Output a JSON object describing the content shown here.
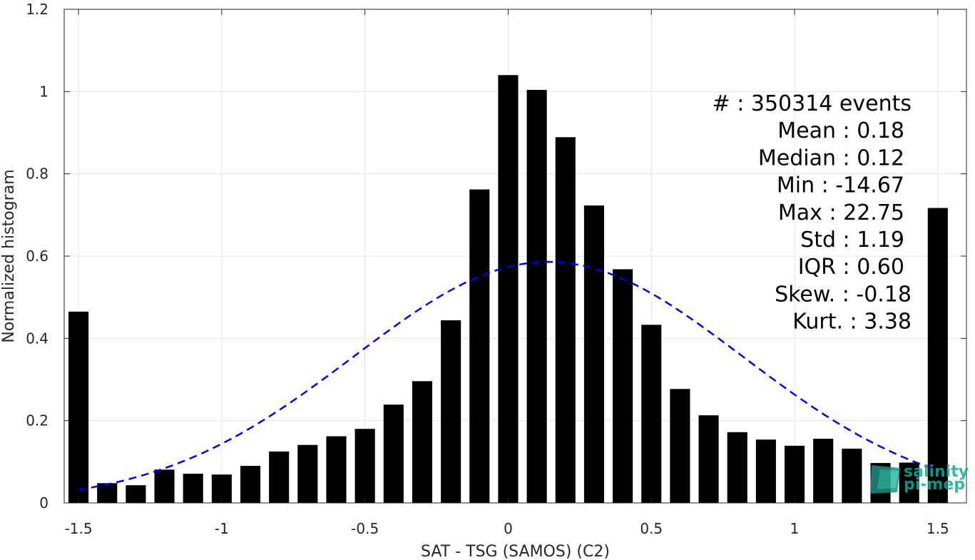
{
  "chart_data": {
    "type": "bar",
    "xlabel": "SAT - TSG (SAMOS) (C2)",
    "ylabel": "Normalized histogram",
    "xlim": [
      -1.55,
      1.6
    ],
    "ylim": [
      0,
      1.2
    ],
    "grid": true,
    "bar_width": 0.07,
    "x_ticks": [
      "-1.5",
      "-1",
      "-0.5",
      "0",
      "0.5",
      "1",
      "1.5"
    ],
    "y_ticks": [
      "0",
      "0.2",
      "0.4",
      "0.6",
      "0.8",
      "1",
      "1.2"
    ],
    "x": [
      -1.5,
      -1.4,
      -1.3,
      -1.2,
      -1.1,
      -1.0,
      -0.9,
      -0.8,
      -0.7,
      -0.6,
      -0.5,
      -0.4,
      -0.3,
      -0.2,
      -0.1,
      0.0,
      0.1,
      0.2,
      0.3,
      0.4,
      0.5,
      0.6,
      0.7,
      0.8,
      0.9,
      1.0,
      1.1,
      1.2,
      1.3,
      1.4,
      1.5
    ],
    "values": [
      0.465,
      0.048,
      0.043,
      0.081,
      0.071,
      0.069,
      0.09,
      0.125,
      0.141,
      0.162,
      0.18,
      0.239,
      0.296,
      0.444,
      0.762,
      1.04,
      1.004,
      0.889,
      0.723,
      0.568,
      0.433,
      0.277,
      0.213,
      0.172,
      0.154,
      0.139,
      0.156,
      0.132,
      0.097,
      0.098,
      0.717
    ],
    "bar_color": "#000000",
    "fit_curve": {
      "style": "dashed",
      "color": "#0000e6",
      "mean": 0.14,
      "std": 0.68,
      "peak": 0.586,
      "x_range": [
        -1.5,
        1.5
      ]
    },
    "stats": [
      {
        "label": "#  : 350314 events"
      },
      {
        "label": "Mean : 0.18"
      },
      {
        "label": "Median : 0.12"
      },
      {
        "label": "Min : -14.67"
      },
      {
        "label": "Max : 22.75"
      },
      {
        "label": "Std : 1.19"
      },
      {
        "label": "IQR : 0.60"
      },
      {
        "label": "Skew. : -0.18"
      },
      {
        "label": "Kurt. : 3.38"
      }
    ]
  },
  "logo": {
    "line1": "salinity",
    "line2": "pi-mep"
  }
}
